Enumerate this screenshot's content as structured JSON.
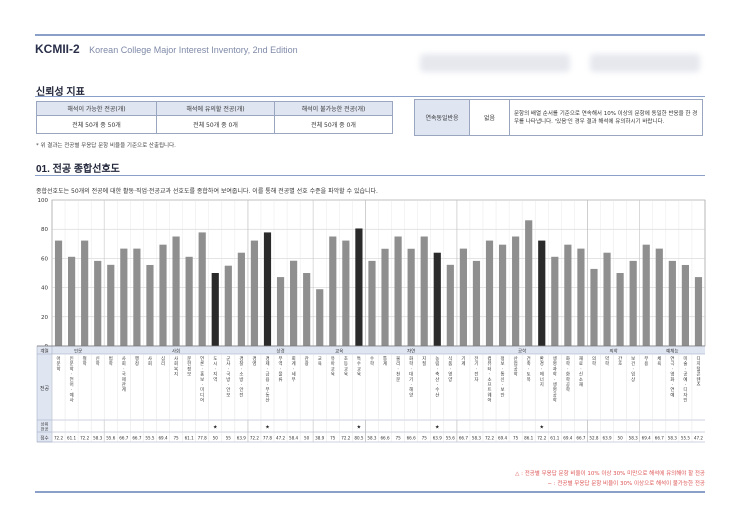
{
  "header": {
    "code": "KCMII-2",
    "subtitle": "Korean College Major Interest Inventory, 2nd Edition"
  },
  "reliability": {
    "title": "신뢰성 지표",
    "headers": [
      "해석이 가능한 전공(개)",
      "해석에 유의할 전공(개)",
      "해석이 불가능한 전공(개)"
    ],
    "values": [
      "전체 50개 중 50개",
      "전체 50개 중 0개",
      "전체 50개 중 0개"
    ],
    "note": "* 위 결과는 전공별 무응답 문항 비율을 기준으로 산출됩니다.",
    "consistency_label": "연속동일반응",
    "consistency_value": "없음",
    "consistency_desc": "문항의 배열 순서를 기준으로 연속해서 10% 이상의 문항에 동일한 반응을 한 경우를 나타냅니다. '있음'인 경우 결과 해석에 유의하시기 바랍니다."
  },
  "section": {
    "title": "01. 전공 종합선호도",
    "description": "종합선호도는 50개의 전공에 대한 활동·직업·전공교과 선호도를 종합하여 보여줍니다. 이를 통해 전공별 선호 수준을 파악할 수 있습니다."
  },
  "row_labels": {
    "field": "계열",
    "major": "전공",
    "top": "상위 전공",
    "score": "점수"
  },
  "chart_data": {
    "type": "bar",
    "ylim": [
      0,
      100
    ],
    "yticks": [
      0,
      20,
      40,
      60,
      80,
      100
    ],
    "groups": [
      {
        "name": "인문",
        "count": 4
      },
      {
        "name": "사회",
        "count": 11
      },
      {
        "name": "상경",
        "count": 5
      },
      {
        "name": "교육",
        "count": 4
      },
      {
        "name": "자연",
        "count": 7
      },
      {
        "name": "공학",
        "count": 10
      },
      {
        "name": "의학",
        "count": 4
      },
      {
        "name": "예체능",
        "count": 5
      }
    ],
    "categories": [
      "어문학",
      "인문학·언어·예사",
      "철학",
      "신학",
      "법학",
      "사회·국제관계",
      "행정",
      "사회",
      "심리",
      "사회복지",
      "문헌정보",
      "언론·홍보·미디어",
      "도시·지역",
      "군사·국방·안보",
      "경찰·소방·안전",
      "경영",
      "경제·금융·부동산",
      "무역·물류",
      "회계·세무",
      "관광",
      "교육",
      "유아교육",
      "초등교육",
      "특수교육",
      "수학",
      "통계",
      "물리·천문",
      "화학·대기·해양",
      "지질",
      "농림·축산·수산",
      "식품·영양",
      "기계",
      "전기·전자",
      "컴퓨터·소프트웨어",
      "정보·통신·보안",
      "산업공학",
      "건축·토목",
      "환경·에너지",
      "생명과학·생명공학",
      "화학·화학공학",
      "재료·신소재",
      "의학",
      "약학",
      "간호",
      "보건·임상",
      "무용",
      "체육",
      "연극·영화·연예",
      "미술·공예·디자인",
      "디지털콘텐츠"
    ],
    "values": [
      72.2,
      61.1,
      72.2,
      58.3,
      55.6,
      66.7,
      66.7,
      55.5,
      69.4,
      75,
      61.1,
      77.8,
      50,
      55,
      63.9,
      72.2,
      77.8,
      47.2,
      58.4,
      50,
      38.9,
      75,
      72.2,
      80.5,
      58.3,
      66.6,
      75,
      66.6,
      75,
      63.9,
      55.6,
      66.7,
      58.3,
      72.2,
      69.4,
      75,
      86.1,
      72.2,
      61.1,
      69.4,
      66.7,
      52.8,
      63.9,
      50,
      58.3,
      69.4,
      66.7,
      58.3,
      55.5,
      47.2
    ],
    "highlighted_indices": [
      12,
      16,
      23,
      29,
      37
    ],
    "top_marks": {
      "12": "★",
      "16": "★",
      "23": "★",
      "29": "★",
      "37": "★"
    }
  },
  "footnotes": [
    "△ : 전공별 무응답 문항 비율이 10% 이상 30% 미만으로 해석에 유의해야 할 전공",
    "− : 전공별 무응답 문항 비율이 30% 이상으로 해석이 불가능한 전공"
  ],
  "colors": {
    "bar": "#8f8f8f",
    "bar_highlight": "#2a2a2a",
    "header_bg": "#dfe5f1",
    "accent_rule": "#8aa0c8"
  }
}
